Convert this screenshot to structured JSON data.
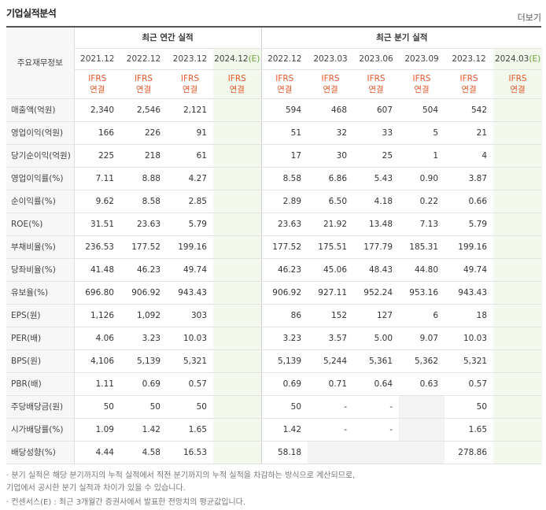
{
  "header": {
    "title": "기업실적분석",
    "more": "더보기"
  },
  "table": {
    "row_header": "주요재무정보",
    "annual_group": "최근 연간 실적",
    "quarter_group": "최근 분기 실적",
    "annual_periods": [
      "2021.12",
      "2022.12",
      "2023.12",
      "2024.12(E)"
    ],
    "quarter_periods": [
      "2022.12",
      "2023.03",
      "2023.06",
      "2023.09",
      "2023.12",
      "2024.03(E)"
    ],
    "basis_line1": "IFRS",
    "basis_line2": "연결",
    "rows": [
      {
        "label": "매출액(억원)",
        "annual": [
          "2,340",
          "2,546",
          "2,121",
          ""
        ],
        "quarter": [
          "594",
          "468",
          "607",
          "504",
          "542",
          ""
        ]
      },
      {
        "label": "영업이익(억원)",
        "annual": [
          "166",
          "226",
          "91",
          ""
        ],
        "quarter": [
          "51",
          "32",
          "33",
          "5",
          "21",
          ""
        ]
      },
      {
        "label": "당기순이익(억원)",
        "annual": [
          "225",
          "218",
          "61",
          ""
        ],
        "quarter": [
          "17",
          "30",
          "25",
          "1",
          "4",
          ""
        ]
      },
      {
        "label": "영업이익률(%)",
        "annual": [
          "7.11",
          "8.88",
          "4.27",
          ""
        ],
        "quarter": [
          "8.58",
          "6.86",
          "5.43",
          "0.90",
          "3.87",
          ""
        ]
      },
      {
        "label": "순이익률(%)",
        "annual": [
          "9.62",
          "8.58",
          "2.85",
          ""
        ],
        "quarter": [
          "2.89",
          "6.50",
          "4.18",
          "0.22",
          "0.66",
          ""
        ]
      },
      {
        "label": "ROE(%)",
        "annual": [
          "31.51",
          "23.63",
          "5.79",
          ""
        ],
        "quarter": [
          "23.63",
          "21.92",
          "13.48",
          "7.13",
          "5.79",
          ""
        ]
      },
      {
        "label": "부채비율(%)",
        "annual": [
          "236.53",
          "177.52",
          "199.16",
          ""
        ],
        "quarter": [
          "177.52",
          "175.51",
          "177.79",
          "185.31",
          "199.16",
          ""
        ]
      },
      {
        "label": "당좌비율(%)",
        "annual": [
          "41.48",
          "46.23",
          "49.74",
          ""
        ],
        "quarter": [
          "46.23",
          "45.06",
          "48.43",
          "44.80",
          "49.74",
          ""
        ]
      },
      {
        "label": "유보율(%)",
        "annual": [
          "696.80",
          "906.92",
          "943.43",
          ""
        ],
        "quarter": [
          "906.92",
          "927.11",
          "952.24",
          "953.16",
          "943.43",
          ""
        ]
      },
      {
        "label": "EPS(원)",
        "annual": [
          "1,126",
          "1,092",
          "303",
          ""
        ],
        "quarter": [
          "86",
          "152",
          "127",
          "6",
          "18",
          ""
        ]
      },
      {
        "label": "PER(배)",
        "annual": [
          "4.06",
          "3.23",
          "10.03",
          ""
        ],
        "quarter": [
          "3.23",
          "3.57",
          "5.00",
          "9.07",
          "10.03",
          ""
        ]
      },
      {
        "label": "BPS(원)",
        "annual": [
          "4,106",
          "5,139",
          "5,321",
          ""
        ],
        "quarter": [
          "5,139",
          "5,244",
          "5,361",
          "5,362",
          "5,321",
          ""
        ]
      },
      {
        "label": "PBR(배)",
        "annual": [
          "1.11",
          "0.69",
          "0.57",
          ""
        ],
        "quarter": [
          "0.69",
          "0.71",
          "0.64",
          "0.63",
          "0.57",
          ""
        ]
      },
      {
        "label": "주당배당금(원)",
        "annual": [
          "50",
          "50",
          "50",
          ""
        ],
        "quarter": [
          "50",
          "-",
          "-",
          "",
          "50",
          ""
        ]
      },
      {
        "label": "시가배당률(%)",
        "annual": [
          "1.09",
          "1.42",
          "1.65",
          ""
        ],
        "quarter": [
          "1.42",
          "-",
          "-",
          "",
          "1.65",
          ""
        ]
      },
      {
        "label": "배당성향(%)",
        "annual": [
          "4.44",
          "4.58",
          "16.53",
          ""
        ],
        "quarter": [
          "58.18",
          "",
          "",
          "",
          "278.86",
          ""
        ]
      }
    ]
  },
  "notes": [
    "· 분기 실적은 해당 분기까지의 누적 실적에서 직전 분기까지의 누적 실적을 차감하는 방식으로 계산되므로,",
    "  기업에서 공시한 분기 실적과 차이가 있을 수 있습니다.",
    "· 컨센서스(E) : 최근 3개월간 증권사에서 발표한 전망치의 평균값입니다."
  ]
}
